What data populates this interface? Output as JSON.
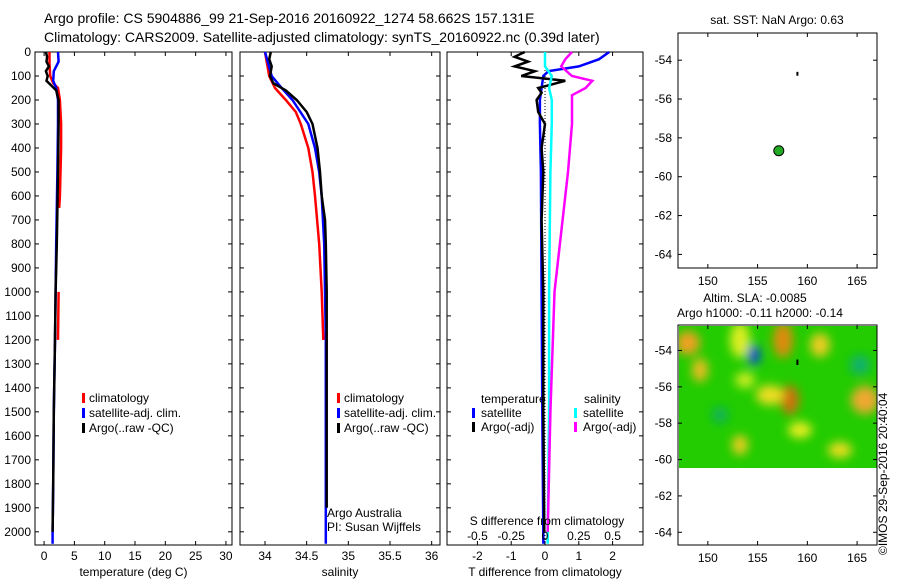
{
  "title": {
    "line1": "Argo profile: CS 5904886_99 21-Sep-2016 20160922_1274 58.662S 157.131E",
    "line2": "Climatology: CARS2009. Satellite-adjusted climatology: synTS_20160922.nc (0.39d later)"
  },
  "colors": {
    "climatology": "#ff0000",
    "satellite": "#0000ff",
    "argo": "#000000",
    "s_satellite": "#00ffff",
    "s_argo": "#ff00ff",
    "float_dot": "#22aa22"
  },
  "chart_data": [
    {
      "type": "line",
      "name": "temperature",
      "xlabel": "temperature (deg C)",
      "xlim": [
        -1.5,
        31
      ],
      "xticks": [
        0,
        5,
        10,
        15,
        20,
        25,
        30
      ],
      "ylim": [
        2055,
        0
      ],
      "yticks": [
        0,
        100,
        200,
        300,
        400,
        500,
        600,
        700,
        800,
        900,
        1000,
        1100,
        1200,
        1300,
        1400,
        1500,
        1600,
        1700,
        1800,
        1900,
        2000
      ],
      "legend": [
        "climatology",
        "satellite-adj. clim.",
        "Argo(..raw -QC)"
      ],
      "series": [
        {
          "name": "climatology",
          "color": "#ff0000",
          "depth": [
            0,
            50,
            100,
            130,
            150,
            200,
            300,
            400,
            600,
            650
          ],
          "values": [
            0.9,
            0.9,
            1.0,
            1.5,
            2.3,
            2.6,
            2.8,
            2.8,
            2.6,
            2.5
          ]
        },
        {
          "name": "climatology",
          "color": "#ff0000",
          "depth": [
            1000,
            1200
          ],
          "values": [
            2.4,
            2.3
          ]
        },
        {
          "name": "satellite-adj. clim.",
          "color": "#0000ff",
          "depth": [
            0,
            40,
            80,
            120,
            150,
            200,
            300,
            500,
            800,
            1000,
            1200,
            1500,
            1800,
            2000,
            2050
          ],
          "values": [
            2.3,
            2.4,
            1.6,
            1.5,
            2.0,
            2.3,
            2.3,
            2.2,
            2.0,
            1.9,
            1.8,
            1.6,
            1.5,
            1.4,
            1.4
          ]
        },
        {
          "name": "Argo(..raw -QC)",
          "color": "#000000",
          "depth": [
            0,
            20,
            40,
            60,
            80,
            100,
            120,
            140,
            160,
            200,
            300,
            500,
            800,
            1000,
            1200,
            1500,
            1800,
            2000
          ],
          "values": [
            0.3,
            0.5,
            0.4,
            0.8,
            0.3,
            0.6,
            0.4,
            1.2,
            2.0,
            2.4,
            2.4,
            2.3,
            2.1,
            1.9,
            1.8,
            1.6,
            1.5,
            1.4
          ]
        }
      ]
    },
    {
      "type": "line",
      "name": "salinity",
      "xlabel": "salinity",
      "xlim": [
        33.7,
        36.1
      ],
      "xticks": [
        34,
        34.5,
        35,
        35.5,
        36
      ],
      "ylim": [
        2055,
        0
      ],
      "legend": [
        "climatology",
        "satellite-adj. clim.",
        "Argo(..raw -QC)"
      ],
      "annotation": [
        "Argo Australia",
        "PI: Susan Wijffels"
      ],
      "series": [
        {
          "name": "climatology",
          "color": "#ff0000",
          "depth": [
            0,
            100,
            150,
            200,
            250,
            300,
            400,
            500,
            600,
            800,
            1000,
            1200
          ],
          "values": [
            34.0,
            34.05,
            34.12,
            34.25,
            34.37,
            34.43,
            34.52,
            34.57,
            34.6,
            34.65,
            34.68,
            34.7
          ]
        },
        {
          "name": "satellite-adj. clim.",
          "color": "#0000ff",
          "depth": [
            0,
            100,
            150,
            200,
            300,
            400,
            500,
            600,
            800,
            1000,
            1200,
            1500,
            2000,
            2050
          ],
          "values": [
            34.0,
            34.08,
            34.2,
            34.33,
            34.52,
            34.6,
            34.65,
            34.68,
            34.71,
            34.72,
            34.73,
            34.73,
            34.73,
            34.73
          ]
        },
        {
          "name": "Argo(..raw -QC)",
          "color": "#000000",
          "depth": [
            0,
            30,
            60,
            100,
            130,
            160,
            200,
            250,
            300,
            400,
            500,
            600,
            700,
            800,
            1000,
            1200,
            1500,
            1800,
            1900
          ],
          "values": [
            34.07,
            34.05,
            34.08,
            34.06,
            34.1,
            34.25,
            34.38,
            34.5,
            34.57,
            34.63,
            34.66,
            34.68,
            34.72,
            34.73,
            34.74,
            34.74,
            34.74,
            34.74,
            34.74
          ]
        }
      ]
    },
    {
      "type": "line",
      "name": "difference",
      "xlabel": "T difference from climatology",
      "x2label": "S difference from climatology",
      "xlim": [
        -2.9,
        2.9
      ],
      "xticks": [
        -2,
        -1,
        0,
        1,
        2
      ],
      "x2lim": [
        -0.725,
        0.725
      ],
      "x2ticks": [
        "-0.5",
        "-0.25",
        "0",
        "0.25",
        "0.5"
      ],
      "ylim": [
        2055,
        0
      ],
      "legend": {
        "temperature": [
          "satellite",
          "Argo(-adj)"
        ],
        "salinity": [
          "satellite",
          "Argo(-adj)"
        ],
        "temperature_label": "temperature",
        "salinity_label": "salinity"
      },
      "series": [
        {
          "name": "temperature satellite",
          "axis": "T",
          "color": "#0000ff",
          "depth": [
            0,
            30,
            60,
            80,
            100,
            150,
            200,
            300,
            500,
            1000,
            1500,
            2000,
            2050
          ],
          "values": [
            1.9,
            1.6,
            1.0,
            0.1,
            -0.05,
            -0.1,
            -0.15,
            -0.15,
            -0.12,
            -0.1,
            -0.08,
            -0.05,
            -0.05
          ]
        },
        {
          "name": "temperature Argo(-adj)",
          "axis": "T",
          "color": "#000000",
          "depth": [
            0,
            20,
            40,
            60,
            80,
            100,
            120,
            135,
            150,
            170,
            200,
            250,
            300,
            400,
            500,
            700,
            1000,
            1500,
            2000
          ],
          "values": [
            -0.6,
            -0.9,
            -0.5,
            -0.9,
            -0.3,
            -0.7,
            0.6,
            0.2,
            -0.2,
            -0.1,
            -0.25,
            -0.2,
            0.0,
            -0.1,
            -0.05,
            -0.1,
            -0.05,
            -0.05,
            -0.02
          ]
        },
        {
          "name": "salinity satellite",
          "axis": "S",
          "color": "#00ffff",
          "depth": [
            0,
            60,
            100,
            150,
            200,
            300,
            500,
            1000,
            1500,
            2000,
            2050
          ],
          "values": [
            0.0,
            0.0,
            0.05,
            0.03,
            0.05,
            0.05,
            0.04,
            0.03,
            0.03,
            0.02,
            0.02
          ]
        },
        {
          "name": "salinity Argo(-adj)",
          "axis": "S",
          "color": "#ff00ff",
          "depth": [
            0,
            30,
            60,
            100,
            120,
            150,
            180,
            250,
            300,
            500,
            700,
            1000,
            1500,
            2000
          ],
          "values": [
            0.2,
            0.15,
            0.12,
            0.2,
            0.35,
            0.3,
            0.2,
            0.2,
            0.2,
            0.17,
            0.13,
            0.07,
            0.04,
            0.02
          ]
        }
      ]
    },
    {
      "type": "scatter",
      "name": "sst-map",
      "title": "sat. SST: NaN Argo: 0.63",
      "xlim": [
        147,
        167
      ],
      "ylim": [
        -64.7,
        -52.6
      ],
      "xticks": [
        150,
        155,
        160,
        165
      ],
      "yticks": [
        -54,
        -56,
        -58,
        -60,
        -62,
        -64
      ],
      "float_position": [
        157.131,
        -58.662
      ]
    },
    {
      "type": "heatmap",
      "name": "sla-map",
      "title1": "Altim. SLA: -0.0085",
      "title2": "Argo h1000: -0.11 h2000: -0.14",
      "xlim": [
        147,
        167
      ],
      "ylim": [
        -64.7,
        -52.6
      ],
      "xticks": [
        150,
        155,
        160,
        165
      ],
      "yticks": [
        -54,
        -56,
        -58,
        -60,
        -62,
        -64
      ],
      "field_south_limit": -60
    }
  ],
  "credit": "©IMOS 29-Sep-2016 20:40:04"
}
